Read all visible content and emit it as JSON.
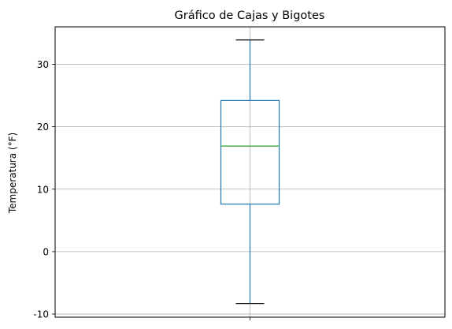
{
  "chart_data": {
    "type": "box",
    "title": "Gráfico de Cajas y Bigotes",
    "xlabel": "",
    "ylabel": "Temperatura (°F)",
    "ylim": [
      -10.5,
      36
    ],
    "yticks": [
      -10,
      0,
      10,
      20,
      30
    ],
    "grid": true,
    "categories": [
      ""
    ],
    "boxes": [
      {
        "whisker_low": -8.3,
        "q1": 7.6,
        "median": 16.9,
        "q3": 24.2,
        "whisker_high": 33.9
      }
    ],
    "colors": {
      "box": "#1f77b4",
      "median": "#2ca02c",
      "caps": "#000000",
      "grid": "#b0b0b0"
    }
  }
}
